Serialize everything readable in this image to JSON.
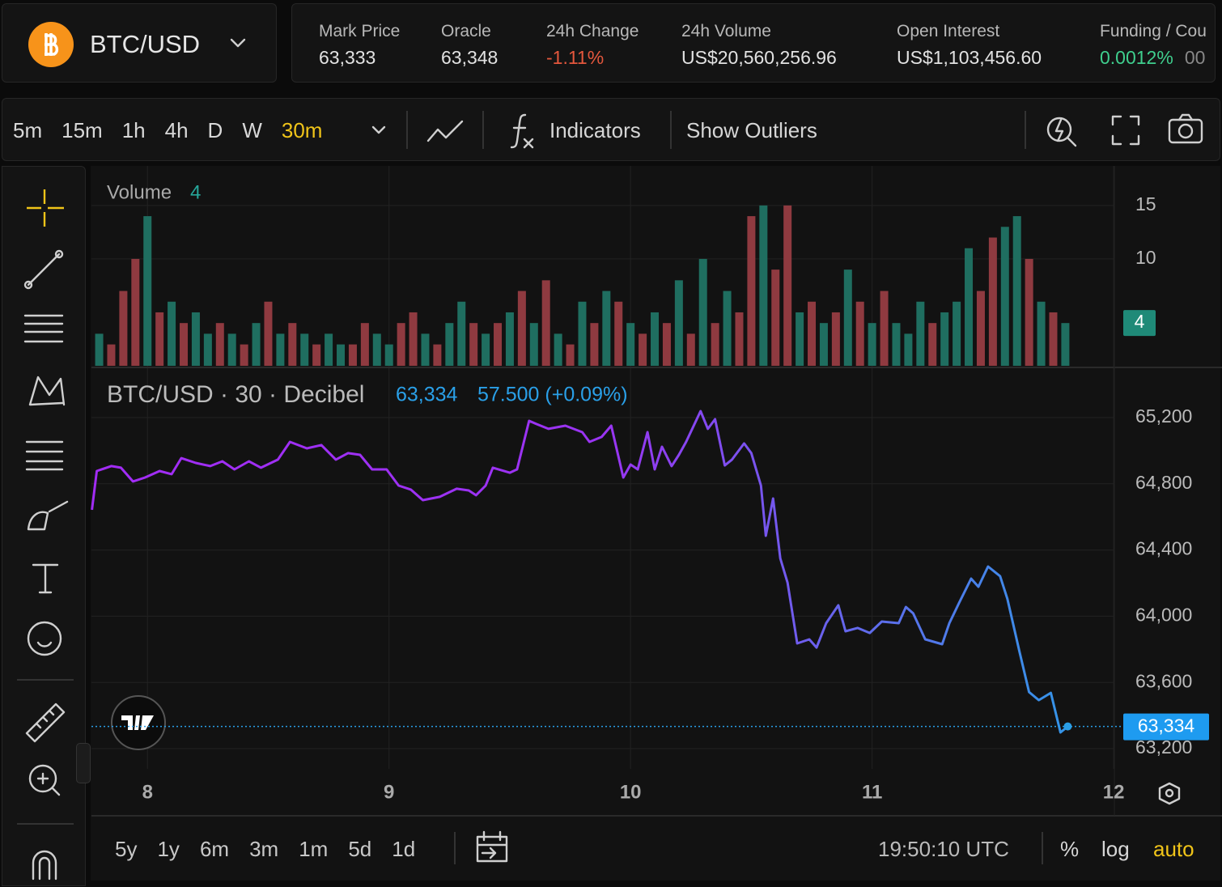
{
  "header": {
    "pair": "BTC/USD",
    "stats": [
      {
        "label": "Mark Price",
        "value": "63,333"
      },
      {
        "label": "Oracle",
        "value": "63,348"
      },
      {
        "label": "24h Change",
        "value": "-1.11%"
      },
      {
        "label": "24h Volume",
        "value": "US$20,560,256.96"
      },
      {
        "label": "Open Interest",
        "value": "US$1,103,456.60"
      },
      {
        "label": "Funding / Cou",
        "value": "0.0012%",
        "extra": "00"
      }
    ]
  },
  "toolbar": {
    "intervals": [
      "5m",
      "15m",
      "1h",
      "4h",
      "D",
      "W"
    ],
    "selected_interval": "30m",
    "indicators": "Indicators",
    "outliers": "Show Outliers"
  },
  "chart_data": [
    {
      "type": "bar",
      "legend_label": "Volume",
      "last_value": 4,
      "ylim": [
        0,
        18.7
      ],
      "yticks": [
        10,
        15
      ],
      "grid": true,
      "x": [
        7.8,
        7.85,
        7.9,
        7.95,
        8.0,
        8.05,
        8.1,
        8.15,
        8.2,
        8.25,
        8.3,
        8.35,
        8.4,
        8.45,
        8.5,
        8.55,
        8.6,
        8.65,
        8.7,
        8.75,
        8.8,
        8.85,
        8.9,
        8.95,
        9.0,
        9.05,
        9.1,
        9.15,
        9.2,
        9.25,
        9.3,
        9.35,
        9.4,
        9.45,
        9.5,
        9.55,
        9.6,
        9.65,
        9.7,
        9.75,
        9.8,
        9.85,
        9.9,
        9.95,
        10.0,
        10.05,
        10.1,
        10.15,
        10.2,
        10.25,
        10.3,
        10.35,
        10.4,
        10.45,
        10.5,
        10.55,
        10.6,
        10.65,
        10.7,
        10.75,
        10.8,
        10.85,
        10.9,
        10.95,
        11.0,
        11.05,
        11.1,
        11.15,
        11.2,
        11.25,
        11.3,
        11.35,
        11.4,
        11.45,
        11.5,
        11.55,
        11.6,
        11.65,
        11.7,
        11.75,
        11.8
      ],
      "values": [
        3,
        2,
        7,
        10,
        14,
        5,
        6,
        4,
        5,
        3,
        4,
        3,
        2,
        4,
        6,
        3,
        4,
        3,
        2,
        3,
        2,
        2,
        4,
        3,
        2,
        4,
        5,
        3,
        2,
        4,
        6,
        4,
        3,
        4,
        5,
        7,
        4,
        8,
        3,
        2,
        6,
        4,
        7,
        6,
        4,
        3,
        5,
        4,
        8,
        3,
        10,
        4,
        7,
        5,
        14,
        15,
        9,
        15,
        5,
        6,
        4,
        5,
        9,
        6,
        4,
        7,
        4,
        3,
        6,
        4,
        5,
        6,
        11,
        7,
        12,
        13,
        14,
        10,
        6,
        5,
        4
      ],
      "colors": [
        "#1f6e60",
        "#8f3a40",
        "#8f3a40",
        "#8f3a40",
        "#1f6e60",
        "#8f3a40",
        "#1f6e60",
        "#8f3a40",
        "#1f6e60",
        "#1f6e60",
        "#8f3a40",
        "#1f6e60",
        "#8f3a40",
        "#1f6e60",
        "#8f3a40",
        "#1f6e60",
        "#8f3a40",
        "#1f6e60",
        "#8f3a40",
        "#1f6e60",
        "#1f6e60",
        "#8f3a40",
        "#8f3a40",
        "#1f6e60",
        "#1f6e60",
        "#8f3a40",
        "#8f3a40",
        "#1f6e60",
        "#8f3a40",
        "#1f6e60",
        "#1f6e60",
        "#8f3a40",
        "#1f6e60",
        "#8f3a40",
        "#1f6e60",
        "#8f3a40",
        "#1f6e60",
        "#8f3a40",
        "#1f6e60",
        "#8f3a40",
        "#1f6e60",
        "#8f3a40",
        "#1f6e60",
        "#8f3a40",
        "#1f6e60",
        "#8f3a40",
        "#1f6e60",
        "#8f3a40",
        "#1f6e60",
        "#8f3a40",
        "#1f6e60",
        "#8f3a40",
        "#1f6e60",
        "#8f3a40",
        "#8f3a40",
        "#1f6e60",
        "#8f3a40",
        "#8f3a40",
        "#1f6e60",
        "#8f3a40",
        "#1f6e60",
        "#8f3a40",
        "#1f6e60",
        "#8f3a40",
        "#1f6e60",
        "#8f3a40",
        "#1f6e60",
        "#1f6e60",
        "#1f6e60",
        "#8f3a40",
        "#1f6e60",
        "#1f6e60",
        "#1f6e60",
        "#8f3a40",
        "#8f3a40",
        "#1f6e60",
        "#1f6e60",
        "#8f3a40",
        "#1f6e60",
        "#8f3a40",
        "#1f6e60"
      ]
    },
    {
      "type": "line",
      "title": "BTC/USD · 30 · Decibel",
      "last_price": {
        "value": 63334,
        "label": "63,334"
      },
      "change": "57.500 (+0.09%)",
      "xlim": [
        7.768,
        12.003
      ],
      "xticks": [
        8,
        9,
        10,
        11,
        12
      ],
      "ylim": [
        63078,
        65498
      ],
      "yticks": [
        {
          "value": 63200,
          "label": "63,200"
        },
        {
          "value": 63600,
          "label": "63,600"
        },
        {
          "value": 64000,
          "label": "64,000"
        },
        {
          "value": 64400,
          "label": "64,400"
        },
        {
          "value": 64800,
          "label": "64,800"
        },
        {
          "value": 65200,
          "label": "65,200"
        }
      ],
      "grid": true,
      "x": [
        7.77,
        7.79,
        7.85,
        7.89,
        7.94,
        7.99,
        8.05,
        8.1,
        8.14,
        8.2,
        8.26,
        8.31,
        8.36,
        8.42,
        8.47,
        8.54,
        8.59,
        8.66,
        8.72,
        8.78,
        8.83,
        8.88,
        8.93,
        8.99,
        9.04,
        9.09,
        9.14,
        9.21,
        9.28,
        9.33,
        9.36,
        9.4,
        9.43,
        9.5,
        9.53,
        9.58,
        9.61,
        9.66,
        9.73,
        9.8,
        9.83,
        9.88,
        9.92,
        9.97,
        10.0,
        10.03,
        10.07,
        10.1,
        10.13,
        10.17,
        10.2,
        10.23,
        10.29,
        10.32,
        10.35,
        10.39,
        10.42,
        10.47,
        10.5,
        10.54,
        10.56,
        10.59,
        10.62,
        10.65,
        10.69,
        10.74,
        10.77,
        10.81,
        10.86,
        10.89,
        10.94,
        10.99,
        11.04,
        11.11,
        11.14,
        11.17,
        11.22,
        11.29,
        11.32,
        11.36,
        11.41,
        11.44,
        11.48,
        11.53,
        11.56,
        11.61,
        11.65,
        11.69,
        11.74,
        11.78,
        11.81
      ],
      "series": [
        {
          "colors": [
            "#a22cf5",
            "#9a34f2",
            "#2a9ee6"
          ],
          "values": [
            64643,
            64877,
            64907,
            64897,
            64814,
            64838,
            64877,
            64858,
            64955,
            64926,
            64907,
            64936,
            64887,
            64936,
            64897,
            64946,
            65053,
            65014,
            65034,
            64946,
            64985,
            64975,
            64887,
            64887,
            64789,
            64765,
            64701,
            64721,
            64770,
            64760,
            64731,
            64789,
            64897,
            64867,
            64887,
            65180,
            65161,
            65132,
            65151,
            65112,
            65053,
            65083,
            65151,
            64838,
            64916,
            64887,
            65112,
            64887,
            65024,
            64907,
            64975,
            65053,
            65239,
            65132,
            65190,
            64911,
            64946,
            65044,
            64985,
            64789,
            64486,
            64711,
            64349,
            64202,
            63836,
            63860,
            63811,
            63958,
            64066,
            63909,
            63929,
            63899,
            63968,
            63958,
            64056,
            64017,
            63860,
            63831,
            63958,
            64080,
            64227,
            64178,
            64300,
            64242,
            64105,
            63787,
            63542,
            63493,
            63537,
            63298,
            63334
          ]
        }
      ]
    }
  ],
  "footer": {
    "ranges": [
      "5y",
      "1y",
      "6m",
      "3m",
      "1m",
      "5d",
      "1d"
    ],
    "time": "19:50:10 UTC",
    "percent": "%",
    "log": "log",
    "auto": "auto"
  }
}
